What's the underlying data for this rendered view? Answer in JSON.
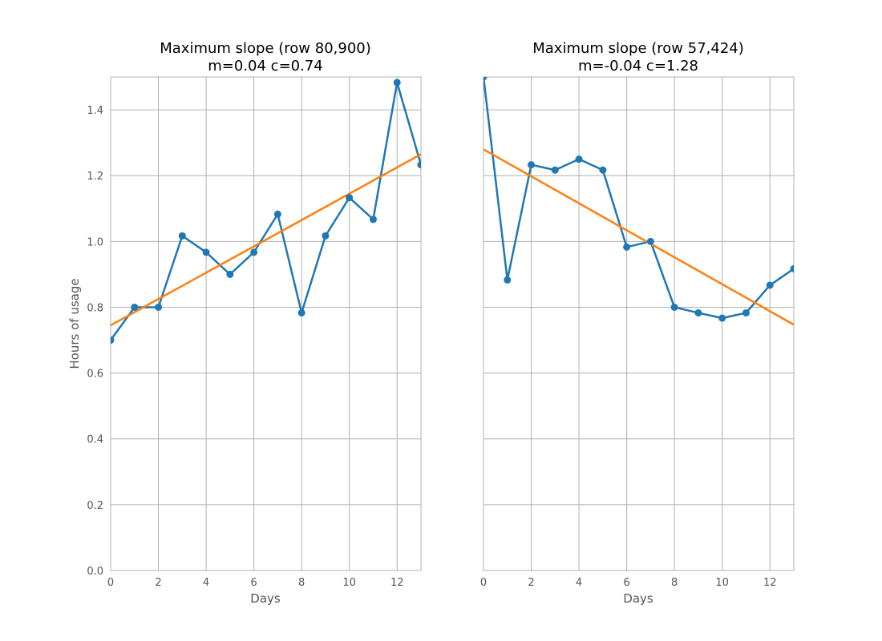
{
  "chart_data": [
    {
      "type": "line",
      "title_line1": "Maximum slope (row 80,900)",
      "title_line2": "m=0.04 c=0.74",
      "xlabel": "Days",
      "ylabel": "Hours of usage",
      "xlim": [
        0,
        13
      ],
      "ylim": [
        0,
        1.5
      ],
      "xticks": [
        "0",
        "2",
        "4",
        "6",
        "8",
        "10",
        "12"
      ],
      "yticks": [
        "0.0",
        "0.2",
        "0.4",
        "0.6",
        "0.8",
        "1.0",
        "1.2",
        "1.4"
      ],
      "grid": true,
      "x": [
        0,
        1,
        2,
        3,
        4,
        5,
        6,
        7,
        8,
        9,
        10,
        11,
        12,
        13
      ],
      "series": [
        {
          "values": [
            0.7,
            0.8,
            0.8,
            1.017,
            0.967,
            0.9,
            0.967,
            1.083,
            0.783,
            1.017,
            1.133,
            1.067,
            1.483,
            1.233
          ],
          "color": "#1f77b4",
          "markers": true
        }
      ],
      "fit": {
        "m": 0.04,
        "c": 0.745,
        "color": "#ff7f0e"
      }
    },
    {
      "type": "line",
      "title_line1": "Maximum slope (row 57,424)",
      "title_line2": "m=-0.04 c=1.28",
      "xlabel": "Days",
      "ylabel": "",
      "xlim": [
        0,
        13
      ],
      "ylim": [
        0,
        1.5
      ],
      "xticks": [
        "0",
        "2",
        "4",
        "6",
        "8",
        "10",
        "12"
      ],
      "yticks": [],
      "grid": true,
      "x": [
        0,
        1,
        2,
        3,
        4,
        5,
        6,
        7,
        8,
        9,
        10,
        11,
        12,
        13
      ],
      "series": [
        {
          "values": [
            1.5,
            0.883,
            1.233,
            1.217,
            1.25,
            1.217,
            0.983,
            1.0,
            0.8,
            0.783,
            0.767,
            0.783,
            0.867,
            0.917
          ],
          "color": "#1f77b4",
          "markers": true
        }
      ],
      "fit": {
        "m": -0.041,
        "c": 1.28,
        "color": "#ff7f0e"
      }
    }
  ]
}
